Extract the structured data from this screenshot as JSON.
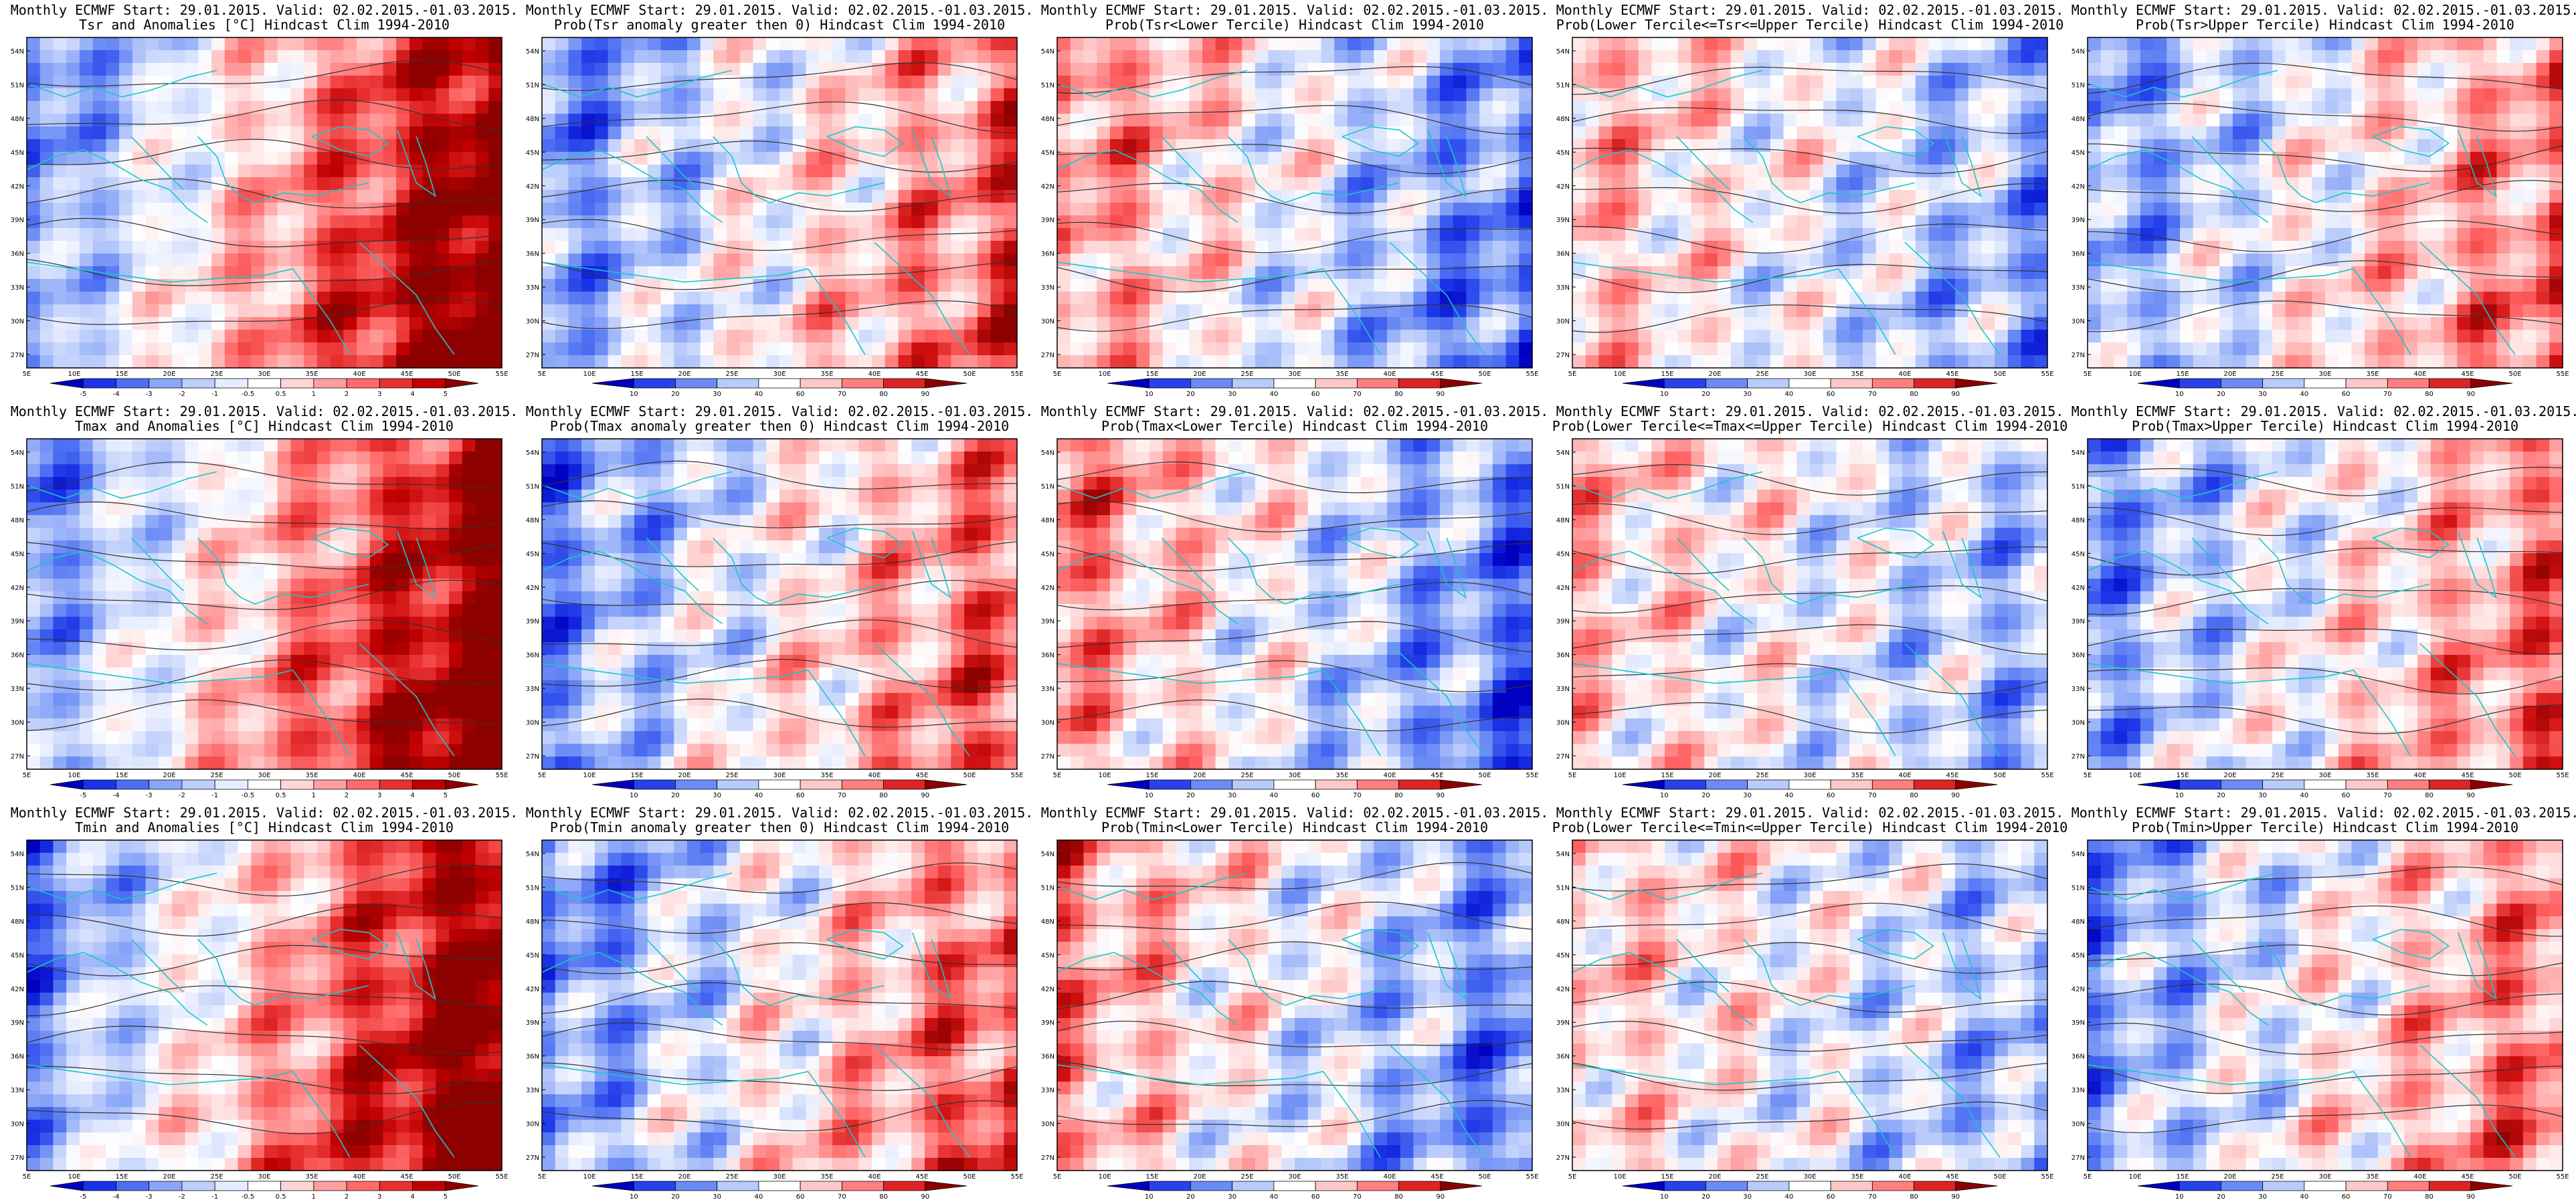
{
  "header_line": "Monthly ECMWF Start: 29.01.2015. Valid: 02.02.2015.-01.03.2015.",
  "colors": {
    "anomaly_scale": [
      "#0000c0",
      "#1a33e6",
      "#4d6ff2",
      "#8aa6f7",
      "#bfcffb",
      "#e6ecff",
      "#ffffff",
      "#ffd6d6",
      "#ff9e9e",
      "#ff6a6a",
      "#e83030",
      "#c00000",
      "#8c0000"
    ],
    "prob_scale": [
      "#0000c0",
      "#1a33e6",
      "#4d6ff2",
      "#8aa6f7",
      "#c9d7fc",
      "#ffffff",
      "#ffd6d6",
      "#ff9e9e",
      "#ff6060",
      "#d01010",
      "#8c0000"
    ],
    "coastline": "#19c7c7",
    "contour": "#333333"
  },
  "map_axes": {
    "lon_labels": [
      "5E",
      "10E",
      "15E",
      "20E",
      "25E",
      "30E",
      "35E",
      "40E",
      "45E",
      "50E",
      "55E"
    ],
    "lat_labels": [
      "54N",
      "51N",
      "48N",
      "45N",
      "42N",
      "39N",
      "36N",
      "33N",
      "30N",
      "27N"
    ]
  },
  "legends": {
    "anomaly": [
      "-5",
      "-4",
      "-3",
      "-2",
      "-1",
      "-0.5",
      "0.5",
      "1",
      "2",
      "3",
      "4",
      "5"
    ],
    "prob": [
      "10",
      "20",
      "30",
      "40",
      "60",
      "70",
      "80",
      "90"
    ]
  },
  "panels": [
    {
      "subtitle": "Tsr and Anomalies [°C] Hindcast Clim 1994-2010",
      "kind": "anom",
      "warm": 0.62
    },
    {
      "subtitle": "Prob(Tsr anomaly greater then 0) Hindcast Clim 1994-2010",
      "kind": "prob",
      "warm": 0.55
    },
    {
      "subtitle": "Prob(Tsr<Lower Tercile) Hindcast Clim 1994-2010",
      "kind": "prob",
      "warm": -0.55
    },
    {
      "subtitle": "Prob(Lower Tercile<=Tsr<=Upper Tercile) Hindcast Clim 1994-2010",
      "kind": "prob",
      "warm": -0.35
    },
    {
      "subtitle": "Prob(Tsr>Upper Tercile) Hindcast Clim 1994-2010",
      "kind": "prob",
      "warm": 0.5
    },
    {
      "subtitle": "Tmax and Anomalies [°C] Hindcast Clim 1994-2010",
      "kind": "anom",
      "warm": 0.6
    },
    {
      "subtitle": "Prob(Tmax anomaly greater then 0) Hindcast Clim 1994-2010",
      "kind": "prob",
      "warm": 0.55
    },
    {
      "subtitle": "Prob(Tmax<Lower Tercile) Hindcast Clim 1994-2010",
      "kind": "prob",
      "warm": -0.55
    },
    {
      "subtitle": "Prob(Lower Tercile<=Tmax<=Upper Tercile) Hindcast Clim 1994-2010",
      "kind": "prob",
      "warm": -0.3
    },
    {
      "subtitle": "Prob(Tmax>Upper Tercile) Hindcast Clim 1994-2010",
      "kind": "prob",
      "warm": 0.5
    },
    {
      "subtitle": "Tmin and Anomalies [°C] Hindcast Clim 1994-2010",
      "kind": "anom",
      "warm": 0.62
    },
    {
      "subtitle": "Prob(Tmin anomaly greater then 0) Hindcast Clim 1994-2010",
      "kind": "prob",
      "warm": 0.6
    },
    {
      "subtitle": "Prob(Tmin<Lower Tercile) Hindcast Clim 1994-2010",
      "kind": "prob",
      "warm": -0.5
    },
    {
      "subtitle": "Prob(Lower Tercile<=Tmin<=Upper Tercile) Hindcast Clim 1994-2010",
      "kind": "prob",
      "warm": -0.3
    },
    {
      "subtitle": "Prob(Tmin>Upper Tercile) Hindcast Clim 1994-2010",
      "kind": "prob",
      "warm": 0.5
    }
  ]
}
